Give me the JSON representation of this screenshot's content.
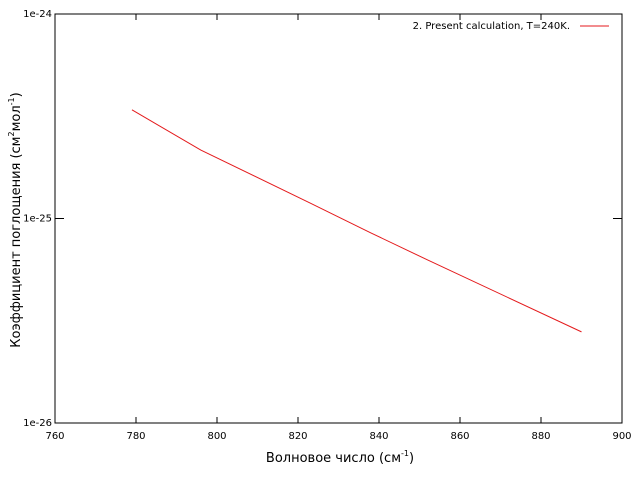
{
  "chart_data": {
    "type": "line",
    "log_y": true,
    "legend": "top-right",
    "x_label": [
      "Волновое число (см",
      "-1",
      ")"
    ],
    "y_label": [
      "Коэффициент поглощения (см",
      "2",
      "мол",
      "-1",
      ")"
    ],
    "x": [
      779,
      796,
      823,
      838,
      852,
      890
    ],
    "series": [
      {
        "name": "2. Present calculation, T=240K.",
        "color": "#e41a1c",
        "values": [
          3.4e-25,
          2.16e-25,
          1.19e-25,
          8.5e-26,
          6.27e-26,
          2.79e-26
        ]
      }
    ],
    "xlim": [
      760,
      900
    ],
    "xticks": [
      760,
      780,
      800,
      820,
      840,
      860,
      880,
      900
    ],
    "ylim": [
      1e-26,
      1e-24
    ],
    "yticks": [
      1e-26,
      1e-25,
      1e-24
    ]
  }
}
